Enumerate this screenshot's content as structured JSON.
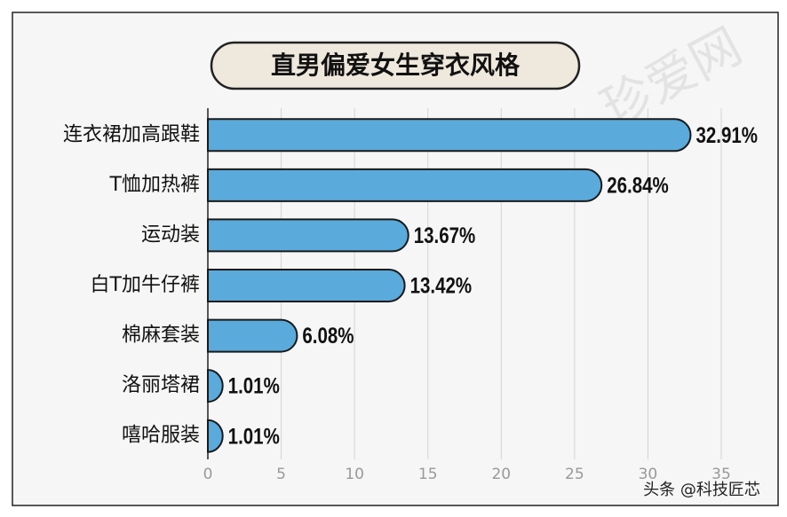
{
  "chart_data": {
    "type": "bar",
    "orientation": "horizontal",
    "title": "直男偏爱女生穿衣风格",
    "categories": [
      "连衣裙加高跟鞋",
      "T恤加热裤",
      "运动装",
      "白T加牛仔裤",
      "棉麻套装",
      "洛丽塔裙",
      "嘻哈服装"
    ],
    "values": [
      32.91,
      26.84,
      13.67,
      13.42,
      6.08,
      1.01,
      1.01
    ],
    "value_labels": [
      "32.91%",
      "26.84%",
      "13.67%",
      "13.42%",
      "6.08%",
      "1.01%",
      "1.01%"
    ],
    "color": "#5aabdb",
    "xlim": [
      0,
      35
    ],
    "xticks": [
      0,
      5,
      10,
      15,
      20,
      25,
      30,
      35
    ],
    "grid": true,
    "watermark": "珍爱网",
    "footer": "头条 @科技匠芯"
  }
}
